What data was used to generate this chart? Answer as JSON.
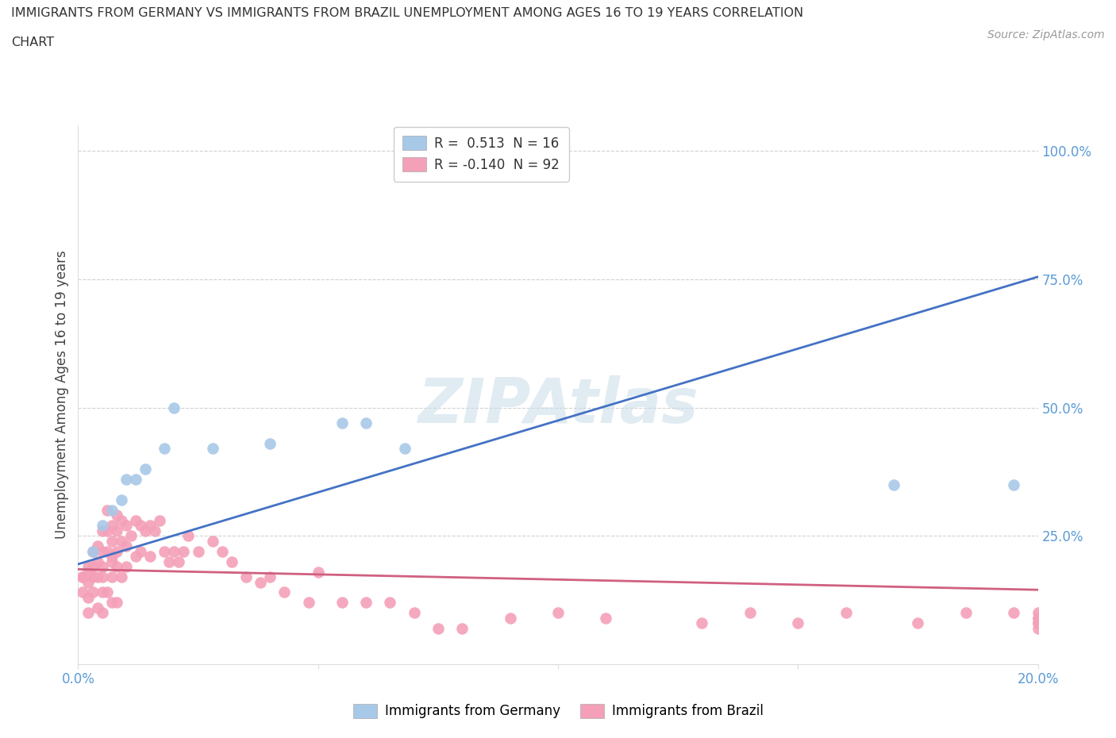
{
  "title_line1": "IMMIGRANTS FROM GERMANY VS IMMIGRANTS FROM BRAZIL UNEMPLOYMENT AMONG AGES 16 TO 19 YEARS CORRELATION",
  "title_line2": "CHART",
  "source_text": "Source: ZipAtlas.com",
  "ylabel": "Unemployment Among Ages 16 to 19 years",
  "xlim": [
    0.0,
    0.2
  ],
  "ylim": [
    0.0,
    1.05
  ],
  "germany_color": "#a8c8e8",
  "brazil_color": "#f4a0b8",
  "germany_line_color": "#4472c4",
  "brazil_line_color": "#d06080",
  "background_color": "#ffffff",
  "germany_R": 0.513,
  "germany_N": 16,
  "brazil_R": -0.14,
  "brazil_N": 92,
  "germany_line_x0": 0.0,
  "germany_line_y0": 0.195,
  "germany_line_x1": 0.2,
  "germany_line_y1": 0.755,
  "brazil_line_x0": 0.0,
  "brazil_line_y0": 0.185,
  "brazil_line_x1": 0.2,
  "brazil_line_y1": 0.145,
  "germany_x": [
    0.003,
    0.005,
    0.007,
    0.009,
    0.01,
    0.012,
    0.014,
    0.018,
    0.02,
    0.028,
    0.04,
    0.055,
    0.06,
    0.068,
    0.17,
    0.195
  ],
  "germany_y": [
    0.22,
    0.27,
    0.3,
    0.32,
    0.36,
    0.36,
    0.38,
    0.42,
    0.5,
    0.42,
    0.43,
    0.47,
    0.47,
    0.42,
    0.35,
    0.35
  ],
  "brazil_x": [
    0.001,
    0.001,
    0.001,
    0.002,
    0.002,
    0.002,
    0.002,
    0.002,
    0.003,
    0.003,
    0.003,
    0.003,
    0.004,
    0.004,
    0.004,
    0.004,
    0.005,
    0.005,
    0.005,
    0.005,
    0.005,
    0.005,
    0.006,
    0.006,
    0.006,
    0.006,
    0.007,
    0.007,
    0.007,
    0.007,
    0.007,
    0.007,
    0.008,
    0.008,
    0.008,
    0.008,
    0.008,
    0.009,
    0.009,
    0.009,
    0.01,
    0.01,
    0.01,
    0.011,
    0.012,
    0.012,
    0.013,
    0.013,
    0.014,
    0.015,
    0.015,
    0.016,
    0.017,
    0.018,
    0.019,
    0.02,
    0.021,
    0.022,
    0.023,
    0.025,
    0.028,
    0.03,
    0.032,
    0.035,
    0.038,
    0.04,
    0.043,
    0.048,
    0.05,
    0.055,
    0.06,
    0.065,
    0.07,
    0.075,
    0.08,
    0.09,
    0.1,
    0.11,
    0.13,
    0.14,
    0.15,
    0.16,
    0.175,
    0.185,
    0.195,
    0.2,
    0.2,
    0.2,
    0.2,
    0.2,
    0.2,
    0.2
  ],
  "brazil_y": [
    0.17,
    0.17,
    0.14,
    0.19,
    0.18,
    0.16,
    0.13,
    0.1,
    0.22,
    0.19,
    0.17,
    0.14,
    0.23,
    0.2,
    0.17,
    0.11,
    0.26,
    0.22,
    0.19,
    0.17,
    0.14,
    0.1,
    0.3,
    0.26,
    0.22,
    0.14,
    0.27,
    0.24,
    0.21,
    0.2,
    0.17,
    0.12,
    0.29,
    0.26,
    0.22,
    0.19,
    0.12,
    0.28,
    0.24,
    0.17,
    0.27,
    0.23,
    0.19,
    0.25,
    0.28,
    0.21,
    0.27,
    0.22,
    0.26,
    0.27,
    0.21,
    0.26,
    0.28,
    0.22,
    0.2,
    0.22,
    0.2,
    0.22,
    0.25,
    0.22,
    0.24,
    0.22,
    0.2,
    0.17,
    0.16,
    0.17,
    0.14,
    0.12,
    0.18,
    0.12,
    0.12,
    0.12,
    0.1,
    0.07,
    0.07,
    0.09,
    0.1,
    0.09,
    0.08,
    0.1,
    0.08,
    0.1,
    0.08,
    0.1,
    0.1,
    0.09,
    0.08,
    0.1,
    0.08,
    0.08,
    0.07,
    0.09
  ]
}
